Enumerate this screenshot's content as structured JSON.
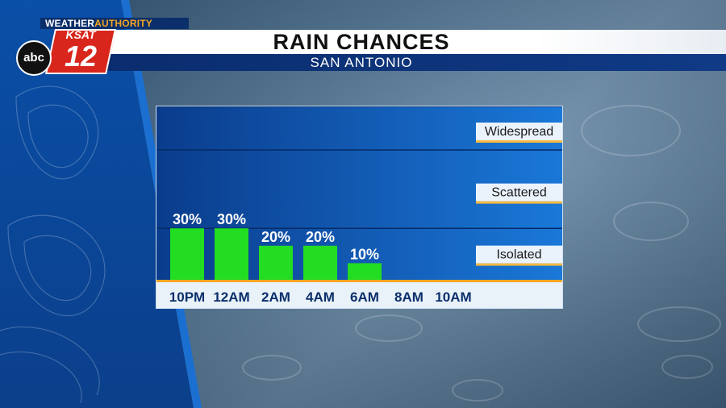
{
  "header": {
    "brand_prefix": "WEATHER",
    "brand_suffix": "AUTHORITY",
    "logo_small": "KSAT",
    "logo_big": "12",
    "network": "abc",
    "title": "RAIN CHANCES",
    "subtitle": "SAN ANTONIO"
  },
  "colors": {
    "bar": "#22dd22",
    "band_dark": "#0a3c8c",
    "band_light": "#1a78d8",
    "baseline": "#f5a623",
    "label_box": "#eaf2fb",
    "label_underline": "#f5b942"
  },
  "chart_data": {
    "type": "bar",
    "title": "RAIN CHANCES",
    "subtitle": "SAN ANTONIO",
    "categories": [
      "10PM",
      "12AM",
      "2AM",
      "4AM",
      "6AM",
      "8AM",
      "10AM"
    ],
    "values": [
      30,
      30,
      20,
      20,
      10,
      0,
      0
    ],
    "data_labels": [
      "30%",
      "30%",
      "20%",
      "20%",
      "10%",
      "",
      ""
    ],
    "ylim": [
      0,
      100
    ],
    "bands": [
      {
        "label": "Isolated",
        "from": 0,
        "to": 30
      },
      {
        "label": "Scattered",
        "from": 30,
        "to": 75
      },
      {
        "label": "Widespread",
        "from": 75,
        "to": 100
      }
    ]
  }
}
